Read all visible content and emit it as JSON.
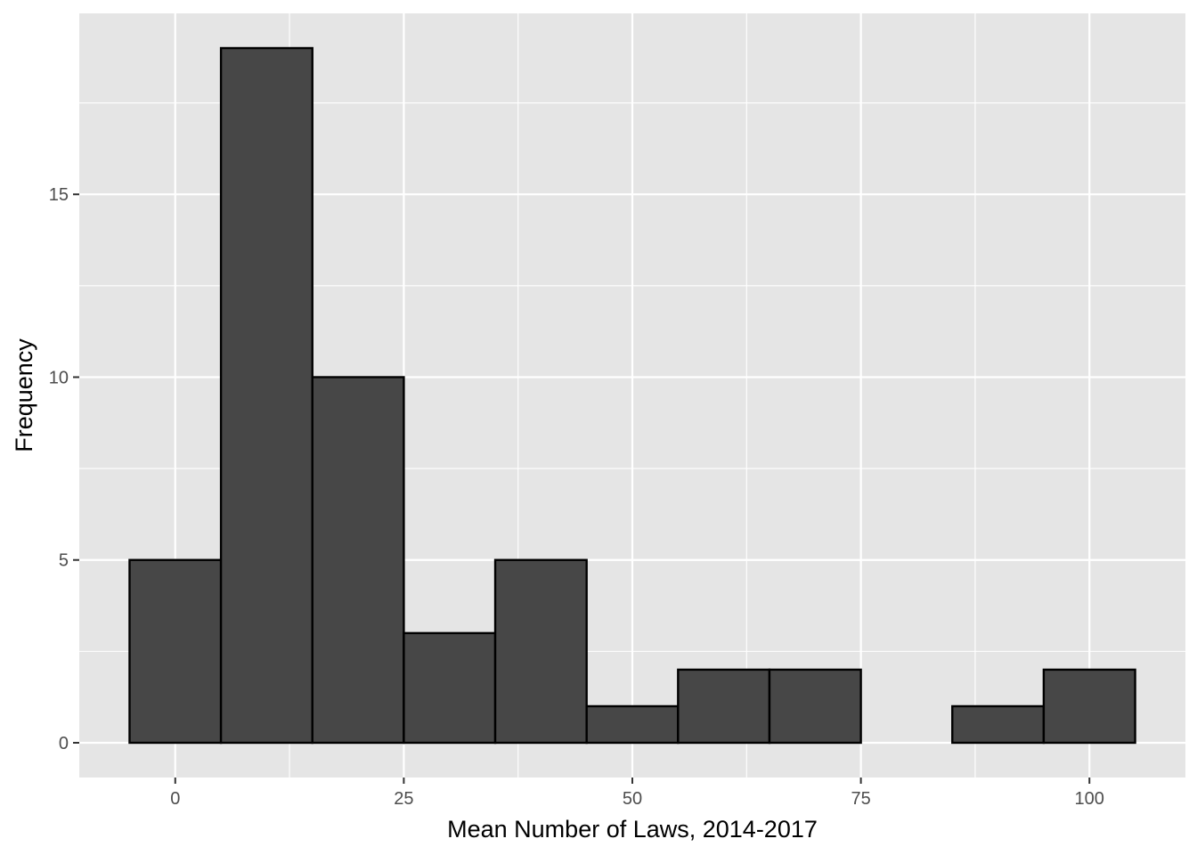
{
  "chart_data": {
    "type": "bar",
    "subtype": "histogram",
    "bin_width": 10,
    "bins": [
      {
        "x_min": -5,
        "x_max": 5,
        "count": 5
      },
      {
        "x_min": 5,
        "x_max": 15,
        "count": 19
      },
      {
        "x_min": 15,
        "x_max": 25,
        "count": 10
      },
      {
        "x_min": 25,
        "x_max": 35,
        "count": 3
      },
      {
        "x_min": 35,
        "x_max": 45,
        "count": 5
      },
      {
        "x_min": 45,
        "x_max": 55,
        "count": 1
      },
      {
        "x_min": 55,
        "x_max": 65,
        "count": 2
      },
      {
        "x_min": 65,
        "x_max": 75,
        "count": 2
      },
      {
        "x_min": 75,
        "x_max": 85,
        "count": 0
      },
      {
        "x_min": 85,
        "x_max": 95,
        "count": 1
      },
      {
        "x_min": 95,
        "x_max": 105,
        "count": 2
      }
    ],
    "title": "",
    "xlabel": "Mean Number of Laws, 2014-2017",
    "ylabel": "Frequency",
    "xlim": [
      -10.5,
      110.5
    ],
    "ylim": [
      -0.95,
      19.95
    ],
    "x_ticks": [
      0,
      25,
      50,
      75,
      100
    ],
    "x_tick_labels": [
      "0",
      "25",
      "50",
      "75",
      "100"
    ],
    "y_ticks": [
      0,
      5,
      10,
      15
    ],
    "y_tick_labels": [
      "0",
      "5",
      "10",
      "15"
    ],
    "grid": true,
    "legend": "none",
    "colors": {
      "panel_background": "#e5e5e5",
      "grid_line": "#ffffff",
      "bar_fill": "#474747",
      "bar_outline": "#000000",
      "tick_label": "#4d4d4d",
      "axis_title": "#000000"
    }
  }
}
